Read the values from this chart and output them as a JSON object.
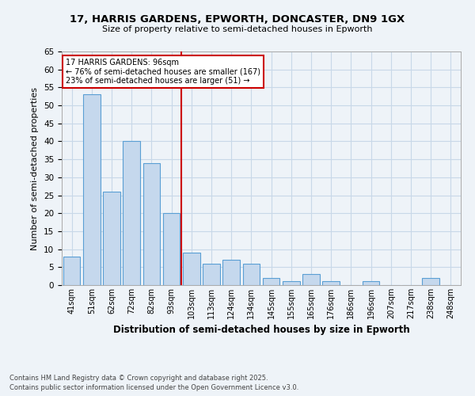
{
  "title1": "17, HARRIS GARDENS, EPWORTH, DONCASTER, DN9 1GX",
  "title2": "Size of property relative to semi-detached houses in Epworth",
  "xlabel": "Distribution of semi-detached houses by size in Epworth",
  "ylabel": "Number of semi-detached properties",
  "categories": [
    "41sqm",
    "51sqm",
    "62sqm",
    "72sqm",
    "82sqm",
    "93sqm",
    "103sqm",
    "113sqm",
    "124sqm",
    "134sqm",
    "145sqm",
    "155sqm",
    "165sqm",
    "176sqm",
    "186sqm",
    "196sqm",
    "207sqm",
    "217sqm",
    "238sqm",
    "248sqm"
  ],
  "values": [
    8,
    53,
    26,
    40,
    34,
    20,
    9,
    6,
    7,
    6,
    2,
    1,
    3,
    1,
    0,
    1,
    0,
    0,
    2,
    0
  ],
  "bar_color": "#c5d8ed",
  "bar_edge_color": "#5a9fd4",
  "grid_color": "#c8d8e8",
  "bg_color": "#eef3f8",
  "red_line_x": 5.5,
  "annotation_title": "17 HARRIS GARDENS: 96sqm",
  "annotation_line1": "← 76% of semi-detached houses are smaller (167)",
  "annotation_line2": "23% of semi-detached houses are larger (51) →",
  "annotation_box_color": "#ffffff",
  "annotation_border_color": "#cc0000",
  "footnote1": "Contains HM Land Registry data © Crown copyright and database right 2025.",
  "footnote2": "Contains public sector information licensed under the Open Government Licence v3.0.",
  "ylim": [
    0,
    65
  ],
  "yticks": [
    0,
    5,
    10,
    15,
    20,
    25,
    30,
    35,
    40,
    45,
    50,
    55,
    60,
    65
  ]
}
